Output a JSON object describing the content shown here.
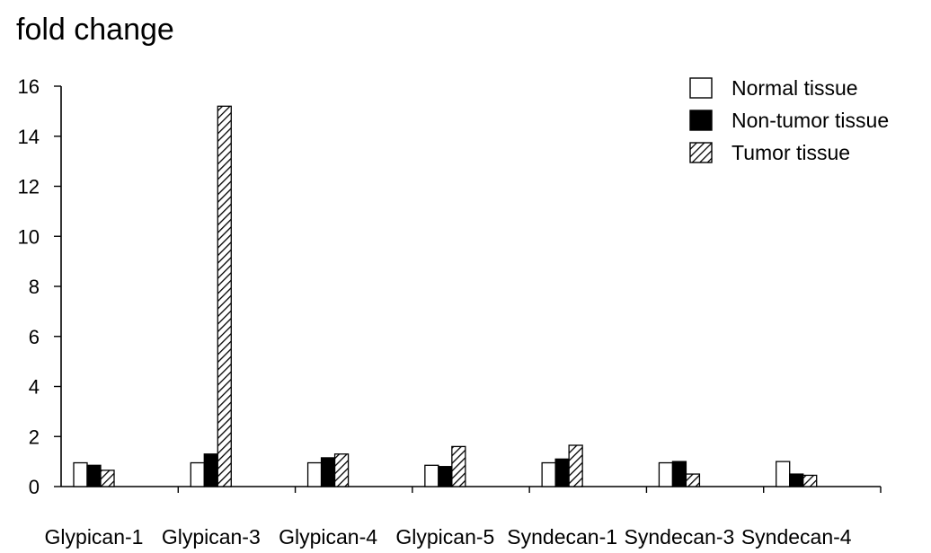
{
  "chart_data": {
    "type": "bar",
    "title": "",
    "ylabel": "fold change",
    "xlabel": "",
    "ylim": [
      0,
      16
    ],
    "yticks": [
      0,
      2,
      4,
      6,
      8,
      10,
      12,
      14,
      16
    ],
    "grid": false,
    "legend_position": "top-right",
    "categories": [
      "Glypican-1",
      "Glypican-3",
      "Glypican-4",
      "Glypican-5",
      "Syndecan-1",
      "Syndecan-3",
      "Syndecan-4"
    ],
    "series": [
      {
        "name": "Normal tissue",
        "style": "white",
        "values": [
          0.95,
          0.95,
          0.95,
          0.85,
          0.95,
          0.95,
          1.0
        ]
      },
      {
        "name": "Non-tumor tissue",
        "style": "black",
        "values": [
          0.85,
          1.3,
          1.15,
          0.8,
          1.1,
          1.0,
          0.5
        ]
      },
      {
        "name": "Tumor tissue",
        "style": "hatched",
        "values": [
          0.65,
          15.2,
          1.3,
          1.6,
          1.65,
          0.5,
          0.45
        ]
      }
    ]
  }
}
